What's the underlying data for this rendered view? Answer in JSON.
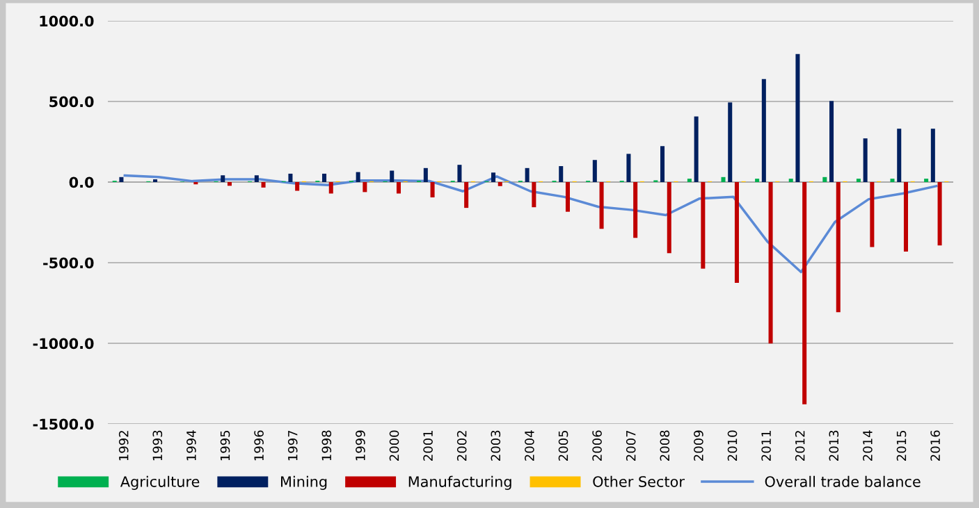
{
  "chart_data": {
    "type": "bar",
    "categories": [
      "1992",
      "1993",
      "1994",
      "1995",
      "1996",
      "1997",
      "1998",
      "1999",
      "2000",
      "2001",
      "2002",
      "2003",
      "2004",
      "2005",
      "2006",
      "2007",
      "2008",
      "2009",
      "2010",
      "2011",
      "2012",
      "2013",
      "2014",
      "2015",
      "2016"
    ],
    "series": [
      {
        "name": "Agriculture",
        "color": "#00b050",
        "values": [
          8,
          5,
          3,
          5,
          5,
          5,
          8,
          8,
          5,
          8,
          8,
          5,
          8,
          8,
          8,
          8,
          11,
          21,
          31,
          21,
          21,
          31,
          21,
          21,
          21
        ]
      },
      {
        "name": "Mining",
        "color": "#002060",
        "values": [
          31,
          17,
          0,
          42,
          42,
          52,
          52,
          62,
          71,
          87,
          107,
          59,
          87,
          99,
          137,
          175,
          223,
          407,
          494,
          639,
          794,
          503,
          271,
          331,
          331
        ]
      },
      {
        "name": "Manufacturing",
        "color": "#c00000",
        "values": [
          0,
          0,
          -14,
          -23,
          -34,
          -54,
          -71,
          -62,
          -71,
          -95,
          -160,
          -25,
          -156,
          -184,
          -290,
          -346,
          -441,
          -537,
          -625,
          -1001,
          -1378,
          -807,
          -403,
          -431,
          -393
        ]
      },
      {
        "name": "Other Sector",
        "color": "#ffc000",
        "values": [
          null,
          null,
          null,
          null,
          null,
          5,
          5,
          5,
          5,
          5,
          5,
          5,
          5,
          5,
          5,
          5,
          5,
          5,
          5,
          5,
          5,
          5,
          5,
          5,
          5
        ]
      },
      {
        "name": "Overall trade balance",
        "type": "line",
        "color": "#5b8ad6",
        "values": [
          41,
          31,
          6,
          17,
          17,
          -8,
          -18,
          10,
          10,
          7,
          -57,
          35,
          -57,
          -92,
          -153,
          -173,
          -205,
          -102,
          -92,
          -368,
          -558,
          -248,
          -106,
          -71,
          -25
        ]
      }
    ],
    "ylim": [
      -1500,
      1000
    ],
    "yticks": [
      {
        "value": -1500,
        "label": "-1500.0"
      },
      {
        "value": -1000,
        "label": "-1000.0"
      },
      {
        "value": -500,
        "label": "-500.0"
      },
      {
        "value": 0,
        "label": "0.0"
      },
      {
        "value": 500,
        "label": "500.0"
      },
      {
        "value": 1000,
        "label": "1000.0"
      }
    ],
    "grid": "y",
    "legend": "bottom",
    "marker": "none",
    "line_style": "solid"
  }
}
